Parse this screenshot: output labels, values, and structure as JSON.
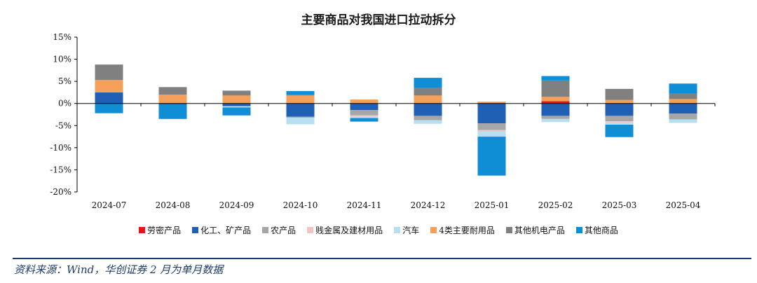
{
  "chart_data": {
    "type": "bar",
    "stacked": true,
    "title": "主要商品对我国进口拉动拆分",
    "categories": [
      "2024-07",
      "2024-08",
      "2024-09",
      "2024-10",
      "2024-11",
      "2024-12",
      "2025-01",
      "2025-02",
      "2025-03",
      "2025-04"
    ],
    "ylim": [
      -20,
      15
    ],
    "yticks": [
      "15%",
      "10%",
      "5%",
      "0%",
      "-5%",
      "-10%",
      "-15%",
      "-20%"
    ],
    "ytick_values": [
      15,
      10,
      5,
      0,
      -5,
      -10,
      -15,
      -20
    ],
    "grid": false,
    "legend_position": "bottom",
    "series": [
      {
        "name": "劳密产品",
        "color": "#e8141c",
        "values": [
          0.0,
          0.0,
          0.0,
          0.0,
          0.0,
          0.0,
          0.0,
          0.5,
          0.0,
          0.0
        ]
      },
      {
        "name": "化工、矿产品",
        "color": "#1f5fb4",
        "values": [
          2.5,
          -0.2,
          -0.6,
          -3.0,
          -1.5,
          -2.8,
          -4.5,
          -2.8,
          -2.8,
          -2.3
        ]
      },
      {
        "name": "农产品",
        "color": "#a6a6a6",
        "values": [
          0.0,
          0.0,
          0.0,
          -0.2,
          -1.2,
          -1.0,
          -1.5,
          -0.7,
          -1.2,
          -1.3
        ]
      },
      {
        "name": "贱金属及建材用品",
        "color": "#f2c4c4",
        "values": [
          0.0,
          0.0,
          0.0,
          0.0,
          -0.3,
          0.0,
          -0.3,
          0.0,
          -0.3,
          0.0
        ]
      },
      {
        "name": "汽车",
        "color": "#b7dff0",
        "values": [
          0.0,
          0.0,
          -0.3,
          -1.5,
          -0.3,
          -0.8,
          -1.2,
          -0.7,
          -0.5,
          -0.8
        ]
      },
      {
        "name": "4类主要耐用品",
        "color": "#f4a05a",
        "values": [
          2.8,
          2.0,
          1.8,
          1.8,
          0.9,
          1.8,
          0.4,
          1.0,
          0.8,
          1.0
        ]
      },
      {
        "name": "其他机电产品",
        "color": "#808080",
        "values": [
          3.5,
          1.7,
          1.1,
          0.2,
          0.0,
          1.8,
          0.0,
          3.7,
          2.5,
          1.2
        ]
      },
      {
        "name": "其他商品",
        "color": "#0f8ed6",
        "values": [
          -2.2,
          -3.3,
          -1.8,
          0.8,
          -0.8,
          2.2,
          -8.8,
          1.0,
          -2.8,
          2.3
        ]
      }
    ]
  },
  "source_note": "资料来源：Wind，华创证券  2 月为单月数据"
}
